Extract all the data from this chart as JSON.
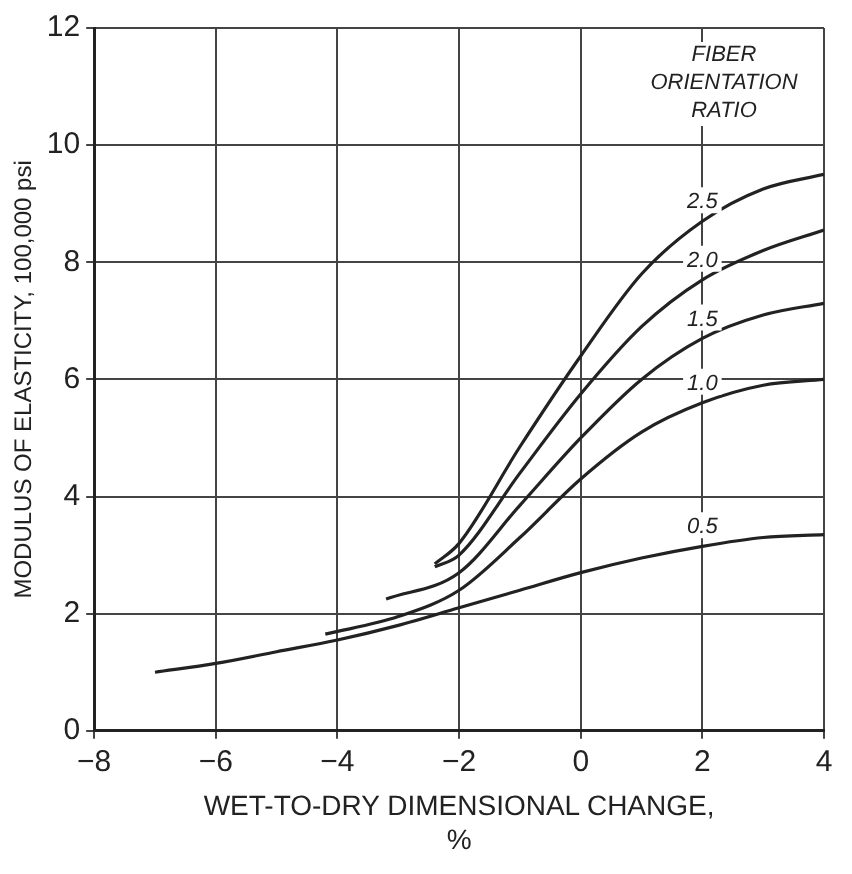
{
  "chart_data": {
    "type": "line",
    "xlabel": "WET-TO-DRY DIMENSIONAL CHANGE, %",
    "ylabel": "MODULUS OF ELASTICITY, 100,000 psi",
    "legend_title": "FIBER ORIENTATION RATIO",
    "xlim": [
      -8,
      4
    ],
    "xticks": [
      -8,
      -6,
      -4,
      -2,
      0,
      2,
      4
    ],
    "ylim": [
      0,
      12
    ],
    "yticks": [
      0,
      2,
      4,
      6,
      8,
      10,
      12
    ],
    "grid": true,
    "legend": false,
    "marker": "none",
    "line_style": "solid",
    "series": [
      {
        "name": "2.5",
        "color": "#222222",
        "x": [
          -2.4,
          -2,
          -1,
          0,
          1,
          2,
          3,
          4
        ],
        "values": [
          2.85,
          3.2,
          4.85,
          6.4,
          7.8,
          8.7,
          9.25,
          9.5
        ]
      },
      {
        "name": "2.0",
        "color": "#222222",
        "x": [
          -2.4,
          -2,
          -1,
          0,
          1,
          2,
          3,
          4
        ],
        "values": [
          2.8,
          3.0,
          4.4,
          5.75,
          6.9,
          7.7,
          8.2,
          8.55
        ]
      },
      {
        "name": "1.5",
        "color": "#222222",
        "x": [
          -3.2,
          -2,
          -1,
          0,
          1,
          2,
          3,
          4
        ],
        "values": [
          2.25,
          2.7,
          3.85,
          5.0,
          6.0,
          6.7,
          7.1,
          7.3
        ]
      },
      {
        "name": "1.0",
        "color": "#222222",
        "x": [
          -4.2,
          -3,
          -2,
          -1,
          0,
          1,
          2,
          3,
          4
        ],
        "values": [
          1.65,
          1.95,
          2.4,
          3.3,
          4.3,
          5.1,
          5.6,
          5.9,
          6.0
        ]
      },
      {
        "name": "0.5",
        "color": "#222222",
        "x": [
          -7,
          -6,
          -5,
          -4,
          -3,
          -2,
          -1,
          0,
          1,
          2,
          3,
          4
        ],
        "values": [
          1.0,
          1.15,
          1.35,
          1.55,
          1.8,
          2.1,
          2.4,
          2.7,
          2.95,
          3.15,
          3.3,
          3.35
        ]
      }
    ]
  }
}
